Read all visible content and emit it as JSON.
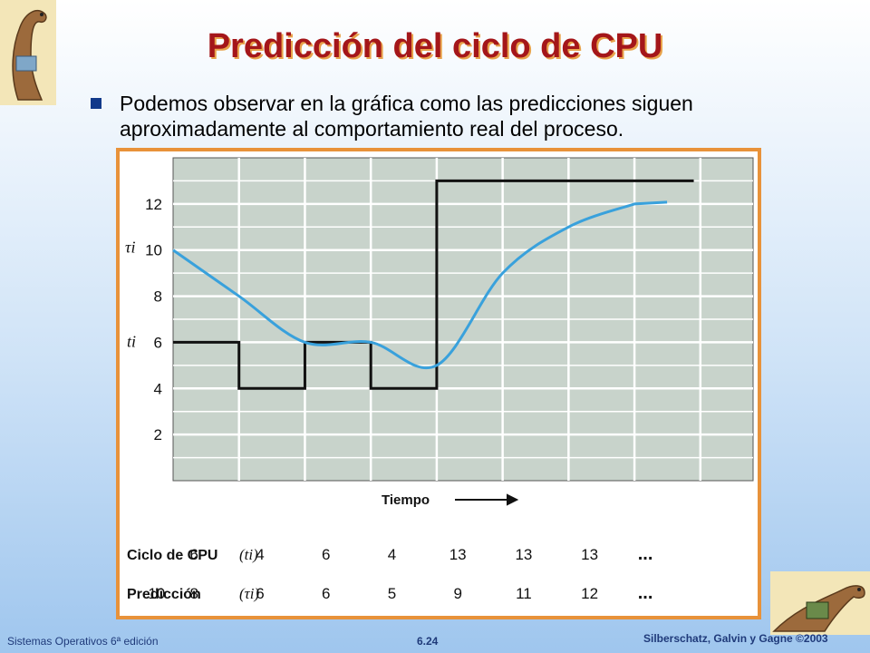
{
  "slide": {
    "title": "Predicción del ciclo de CPU",
    "bullet": "Podemos observar en la gráfica como las predicciones siguen aproximadamente al comportamiento real del proceso."
  },
  "footer": {
    "left": "Sistemas Operativos 6ª edición",
    "center": "6.24",
    "right": "Silberschatz, Galvin y Gagne ©2003"
  },
  "colors": {
    "title": "#a4161a",
    "grid_bg": "#c8d3cb",
    "actual_line": "#111111",
    "prediction_line": "#39a1dc",
    "frame": "#e8923a"
  },
  "chart_data": {
    "type": "line",
    "xlabel": "Tiempo",
    "y_axis_labels": [
      "τi",
      "ti"
    ],
    "yticks": [
      2,
      4,
      6,
      8,
      10,
      12
    ],
    "ylim": [
      0,
      14
    ],
    "grid": true,
    "series": [
      {
        "name": "ti",
        "step": true,
        "x": [
          0,
          1,
          2,
          3,
          4,
          5,
          6,
          7
        ],
        "values": [
          6,
          4,
          6,
          4,
          13,
          13,
          13,
          13
        ]
      },
      {
        "name": "τi",
        "smooth": true,
        "x": [
          0,
          1,
          2,
          3,
          4,
          5,
          6,
          7
        ],
        "values": [
          10,
          8,
          6,
          6,
          5,
          9,
          11,
          12
        ]
      }
    ],
    "table": {
      "rows": [
        {
          "label": "Ciclo de CPU",
          "symbol": "(ti)",
          "values": [
            "6",
            "4",
            "6",
            "4",
            "13",
            "13",
            "13"
          ],
          "ellipsis": "..."
        },
        {
          "label": "Predicción",
          "symbol": "(τi)",
          "values": [
            "10",
            "8",
            "6",
            "6",
            "5",
            "9",
            "11",
            "12"
          ],
          "ellipsis": "..."
        }
      ]
    }
  }
}
